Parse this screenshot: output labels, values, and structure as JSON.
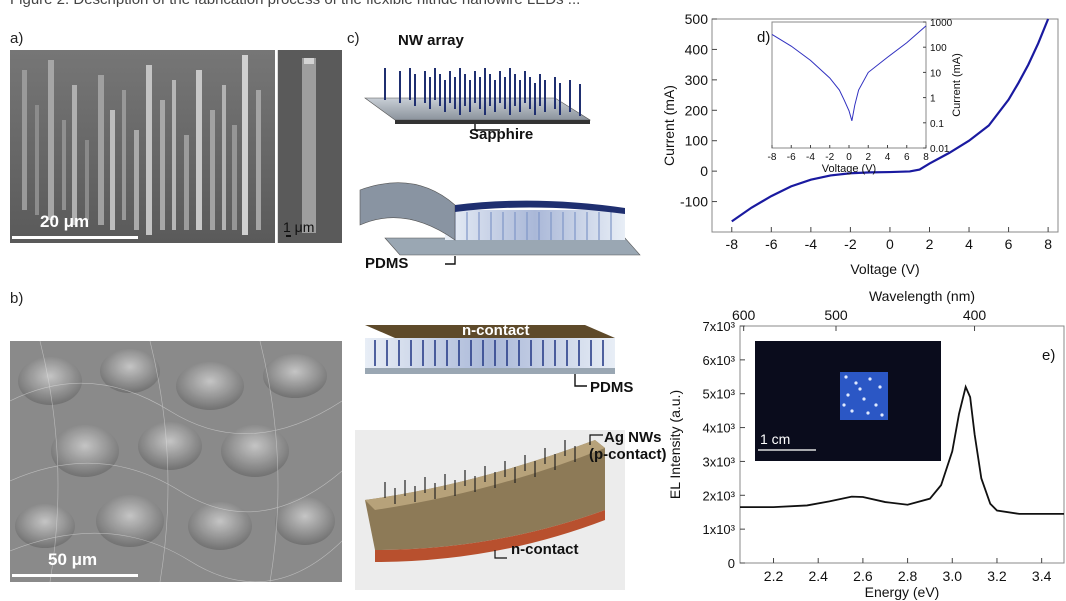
{
  "caption_fragment": "Figure 2. Description of the fabrication process of the flexible nitride nanowire LEDs ...",
  "panels": {
    "a": {
      "letter": "a)",
      "scale_main": "20 μm",
      "scale_inset": "1 μm"
    },
    "b": {
      "letter": "b)",
      "scale": "50 μm"
    },
    "c": {
      "letter": "c)",
      "labels": {
        "nw_array": "NW array",
        "sapphire": "Sapphire",
        "pdms_1": "PDMS",
        "n_contact_top": "n-contact",
        "pdms_2": "PDMS",
        "ag_nws": "Ag NWs",
        "p_contact": "(p-contact)",
        "n_contact_bottom": "n-contact"
      }
    },
    "d": {
      "letter": "d)"
    },
    "e": {
      "letter": "e)",
      "inset_scale": "1 cm"
    }
  },
  "chart_data": [
    {
      "id": "d-main",
      "type": "line",
      "xlabel": "Voltage (V)",
      "ylabel": "Current (mA)",
      "xlim": [
        -9,
        8.5
      ],
      "ylim": [
        -200,
        500
      ],
      "xticks": [
        -8,
        -6,
        -4,
        -2,
        0,
        2,
        4,
        6,
        8
      ],
      "yticks": [
        -100,
        0,
        100,
        200,
        300,
        400,
        500
      ],
      "color": "#1a1aa0",
      "x": [
        -8,
        -7,
        -6,
        -5,
        -4,
        -3,
        -2,
        -1,
        0,
        1,
        1.5,
        2,
        3,
        4,
        5,
        6,
        6.5,
        7,
        7.5,
        8
      ],
      "y": [
        -165,
        -120,
        -82,
        -50,
        -28,
        -14,
        -7,
        -4,
        -3,
        -1,
        5,
        25,
        60,
        100,
        150,
        235,
        290,
        350,
        420,
        500
      ]
    },
    {
      "id": "d-inset",
      "type": "line",
      "log_y": true,
      "xlabel": "Voltage (V)",
      "ylabel": "Current (mA)",
      "xlim": [
        -8,
        8
      ],
      "ylim": [
        0.01,
        1000
      ],
      "xticks": [
        -8,
        -6,
        -4,
        -2,
        0,
        2,
        4,
        6,
        8
      ],
      "yticks": [
        "1000",
        "100",
        "10",
        "1",
        "0.1",
        "0.01"
      ],
      "color": "#3030c0",
      "x": [
        -8,
        -6,
        -4,
        -2,
        -1,
        -0.5,
        0,
        0.3,
        0.6,
        1,
        2,
        4,
        6,
        8
      ],
      "y": [
        320,
        110,
        30,
        6,
        2,
        0.8,
        0.3,
        0.12,
        0.5,
        2,
        10,
        40,
        150,
        700
      ]
    },
    {
      "id": "e-main",
      "type": "line",
      "xlabel": "Energy (eV)",
      "ylabel": "EL Intensity (a.u.)",
      "top_xlabel": "Wavelength (nm)",
      "xlim": [
        2.05,
        3.5
      ],
      "ylim": [
        0,
        7000
      ],
      "xticks": [
        2.2,
        2.4,
        2.6,
        2.8,
        3.0,
        3.2,
        3.4
      ],
      "ytick_labels": [
        "0",
        "1x10³",
        "2x10³",
        "3x10³",
        "4x10³",
        "5x10³",
        "6x10³",
        "7x10³"
      ],
      "top_ticks": [
        600,
        500,
        400
      ],
      "color": "#111111",
      "x": [
        2.05,
        2.2,
        2.35,
        2.45,
        2.55,
        2.6,
        2.7,
        2.8,
        2.9,
        2.95,
        3.0,
        3.03,
        3.06,
        3.08,
        3.1,
        3.13,
        3.17,
        3.2,
        3.3,
        3.5
      ],
      "y": [
        1650,
        1650,
        1700,
        1820,
        1960,
        1950,
        1800,
        1720,
        1900,
        2300,
        3300,
        4400,
        5200,
        4900,
        3800,
        2500,
        1750,
        1550,
        1450,
        1450
      ]
    }
  ]
}
